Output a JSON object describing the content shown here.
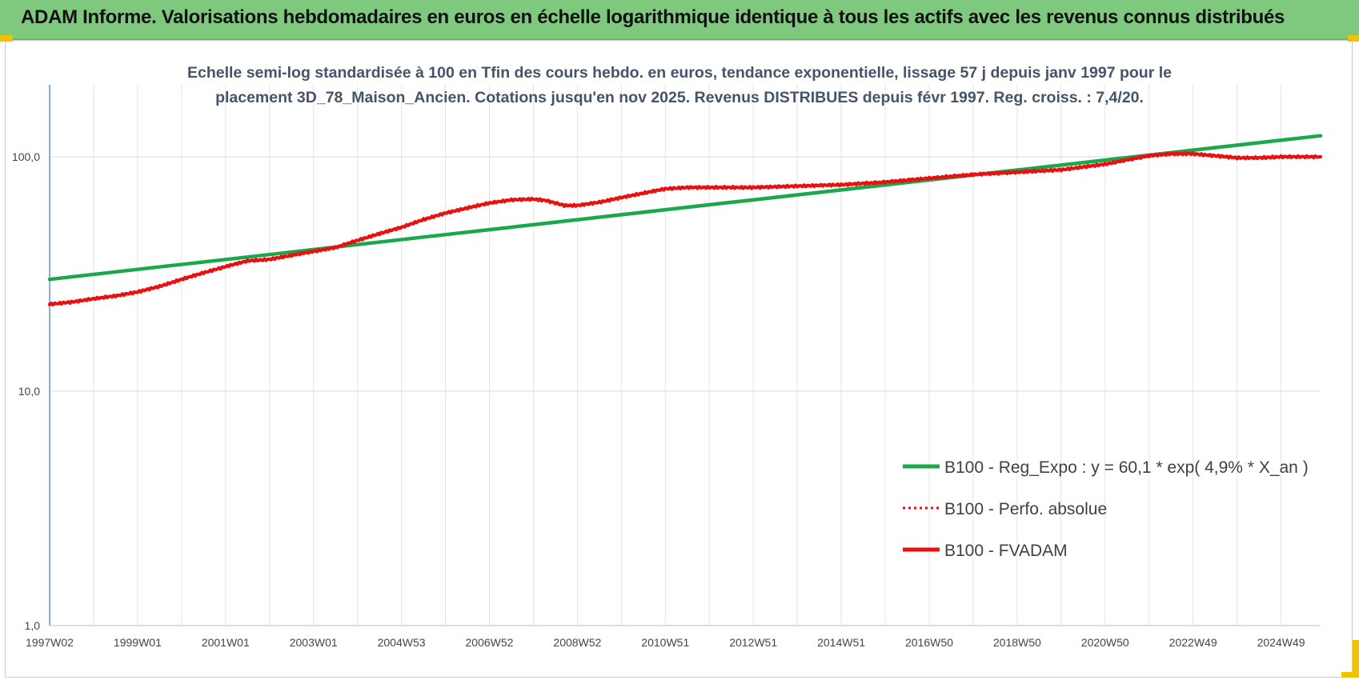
{
  "header": {
    "title": "ADAM Informe. Valorisations hebdomadaires en euros en échelle logarithmique identique à tous les actifs avec les revenus connus distribués"
  },
  "chart_data": {
    "type": "line",
    "subtitle_line1": "Echelle semi-log standardisée à 100 en Tfin des cours hebdo. en euros, tendance exponentielle, lissage 57 j depuis janv 1997 pour le",
    "subtitle_line2": "placement 3D_78_Maison_Ancien. Cotations jusqu'en nov 2025. Revenus DISTRIBUES depuis févr 1997. Reg. croiss. : 7,4/20.",
    "y_scale": "log",
    "ylim": [
      1,
      200
    ],
    "y_ticks": [
      1,
      10,
      100
    ],
    "y_tick_labels": [
      "1,0",
      "10,0",
      "100,0"
    ],
    "xlim": [
      1997.0,
      2025.9
    ],
    "x_tick_labels": [
      "1997W02",
      "1999W01",
      "2001W01",
      "2003W01",
      "2004W53",
      "2006W52",
      "2008W52",
      "2010W51",
      "2012W51",
      "2014W51",
      "2016W50",
      "2018W50",
      "2020W50",
      "2022W49",
      "2024W49"
    ],
    "x_tick_values": [
      1997.0,
      1999.0,
      2001.0,
      2003.0,
      2005.0,
      2007.0,
      2009.0,
      2011.0,
      2013.0,
      2015.0,
      2017.0,
      2019.0,
      2021.0,
      2023.0,
      2025.0
    ],
    "grid": true,
    "legend_position": "bottom-right",
    "series": [
      {
        "name": "B100 - Reg_Expo : y = 60,1 * exp( 4,9% *  X_an )",
        "color": "#1aa84b",
        "style": "solid",
        "x": [
          1997.0,
          2025.9
        ],
        "y": [
          30.0,
          123.0
        ]
      },
      {
        "name": "B100 - Perfo. absolue",
        "color": "#e81010",
        "style": "dotted",
        "x": [
          1997.0,
          1997.5,
          1998.0,
          1998.5,
          1999.0,
          1999.5,
          2000.0,
          2000.5,
          2001.0,
          2001.5,
          2002.0,
          2002.5,
          2003.0,
          2003.5,
          2004.0,
          2004.5,
          2005.0,
          2005.5,
          2006.0,
          2006.5,
          2007.0,
          2007.5,
          2008.0,
          2008.3,
          2008.7,
          2009.0,
          2009.5,
          2010.0,
          2010.5,
          2011.0,
          2011.5,
          2012.0,
          2013.0,
          2014.0,
          2015.0,
          2016.0,
          2017.0,
          2018.0,
          2019.0,
          2020.0,
          2021.0,
          2021.5,
          2022.0,
          2022.5,
          2023.0,
          2023.5,
          2024.0,
          2024.5,
          2025.0,
          2025.9
        ],
        "y": [
          23.5,
          24.0,
          24.8,
          25.5,
          26.5,
          28.0,
          30.0,
          32.0,
          34.0,
          36.0,
          36.5,
          38.0,
          39.5,
          41.0,
          44.0,
          47.0,
          50.0,
          54.0,
          57.5,
          60.5,
          63.5,
          65.5,
          66.0,
          65.0,
          62.0,
          62.0,
          64.0,
          67.0,
          70.0,
          73.0,
          74.0,
          74.0,
          74.0,
          75.0,
          76.0,
          78.0,
          81.0,
          84.0,
          86.0,
          88.0,
          93.0,
          97.0,
          101.0,
          103.0,
          103.0,
          101.0,
          99.0,
          99.0,
          100.0,
          100.0
        ]
      },
      {
        "name": "B100 - FVADAM",
        "color": "#e81010",
        "style": "solid",
        "x": [
          1997.0,
          1997.5,
          1998.0,
          1998.5,
          1999.0,
          1999.5,
          2000.0,
          2000.5,
          2001.0,
          2001.5,
          2002.0,
          2002.5,
          2003.0,
          2003.5,
          2004.0,
          2004.5,
          2005.0,
          2005.5,
          2006.0,
          2006.5,
          2007.0,
          2007.5,
          2008.0,
          2008.3,
          2008.7,
          2009.0,
          2009.5,
          2010.0,
          2010.5,
          2011.0,
          2011.5,
          2012.0,
          2013.0,
          2014.0,
          2015.0,
          2016.0,
          2017.0,
          2018.0,
          2019.0,
          2020.0,
          2021.0,
          2021.5,
          2022.0,
          2022.5,
          2023.0,
          2023.5,
          2024.0,
          2024.5,
          2025.0,
          2025.9
        ],
        "y": [
          23.5,
          24.0,
          24.8,
          25.5,
          26.5,
          28.0,
          30.0,
          32.0,
          34.0,
          36.0,
          36.5,
          38.0,
          39.5,
          41.0,
          44.0,
          47.0,
          50.0,
          54.0,
          57.5,
          60.5,
          63.5,
          65.5,
          66.0,
          65.0,
          62.0,
          62.0,
          64.0,
          67.0,
          70.0,
          73.0,
          74.0,
          74.0,
          74.0,
          75.0,
          76.0,
          78.0,
          81.0,
          84.0,
          86.0,
          88.0,
          93.0,
          97.0,
          101.0,
          103.0,
          103.0,
          101.0,
          99.0,
          99.0,
          100.0,
          100.0
        ]
      }
    ]
  }
}
